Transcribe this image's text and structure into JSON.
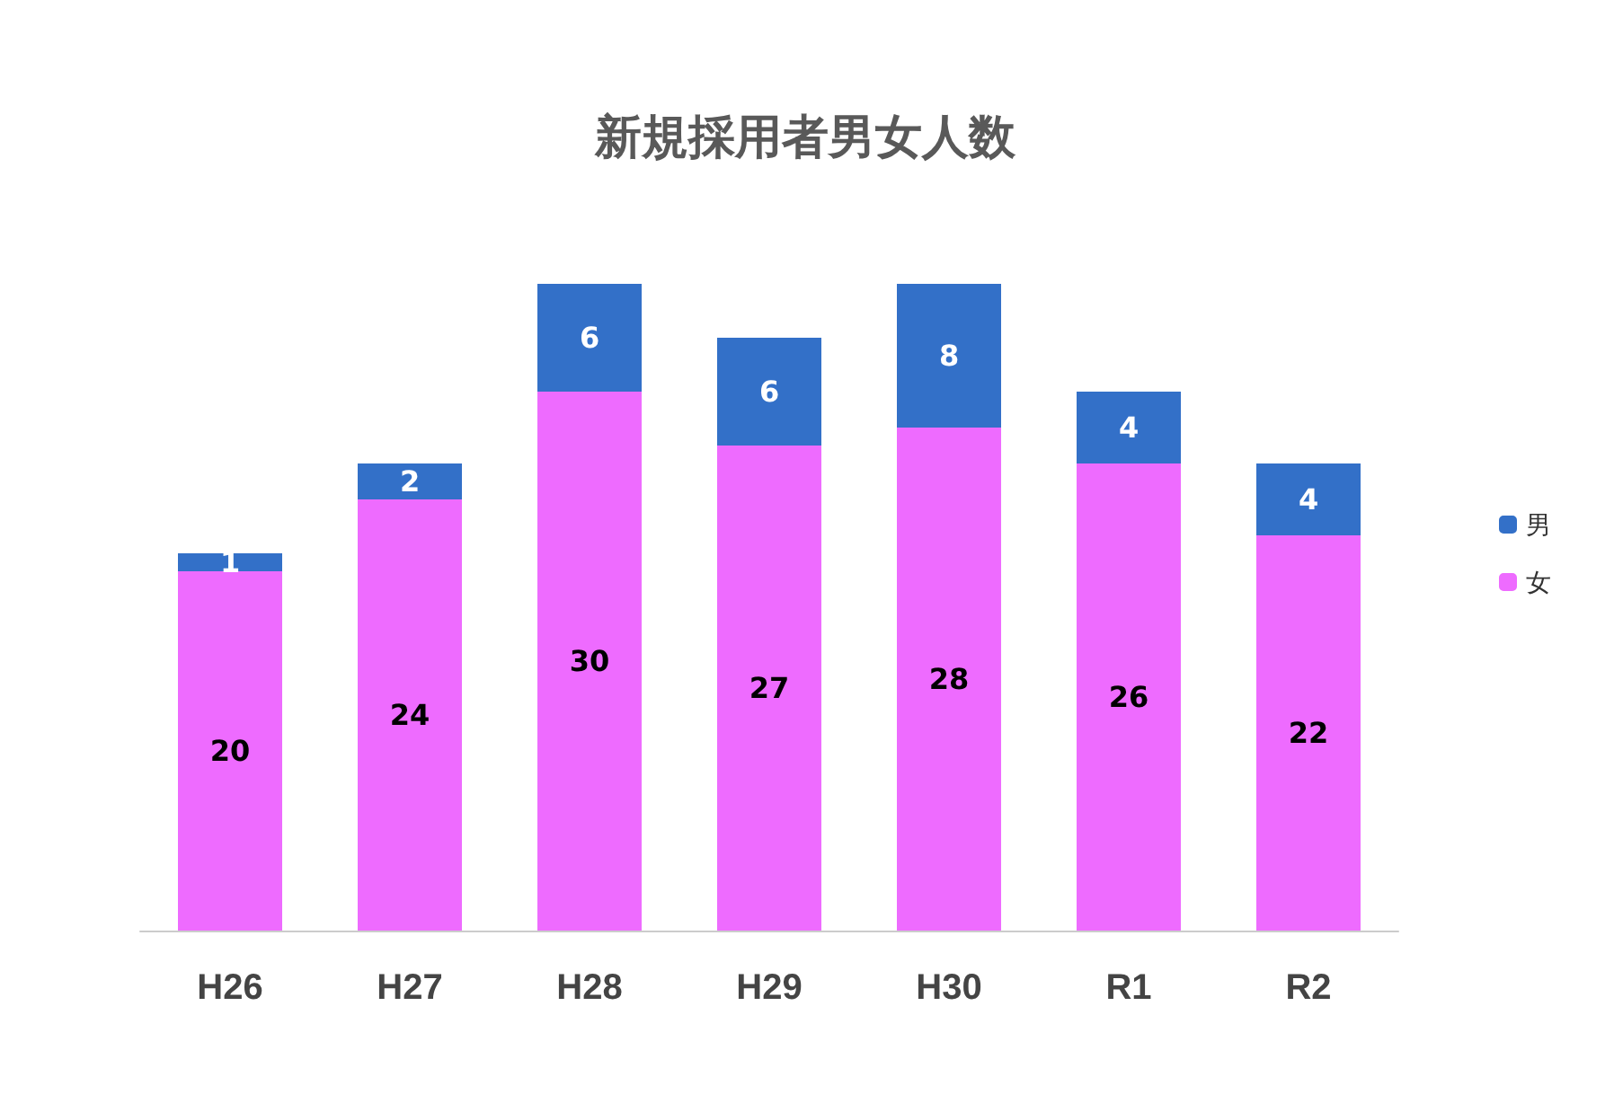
{
  "chart_data": {
    "type": "bar",
    "title": "新規採用者男女人数",
    "categories": [
      "H26",
      "H27",
      "H28",
      "H29",
      "H30",
      "R1",
      "R2"
    ],
    "stacked": true,
    "data_labels": true,
    "grid": false,
    "legend": "right",
    "series": [
      {
        "name": "女",
        "color": "#ee6bff",
        "values": [
          20,
          24,
          30,
          27,
          28,
          26,
          22
        ]
      },
      {
        "name": "男",
        "color": "#3370c8",
        "values": [
          1,
          2,
          6,
          6,
          8,
          4,
          4
        ]
      }
    ]
  }
}
